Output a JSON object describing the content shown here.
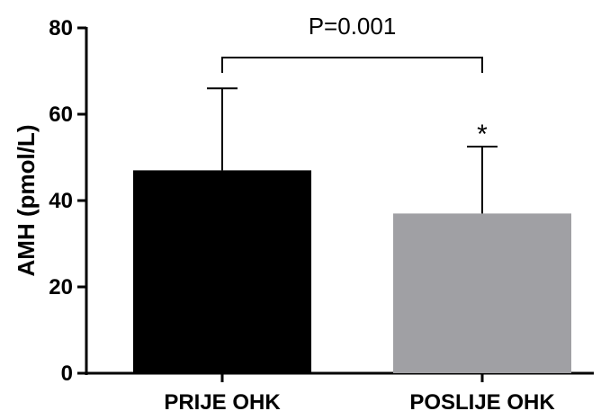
{
  "chart_data": {
    "type": "bar",
    "categories": [
      "PRIJE OHK",
      "POSLIJE OHK"
    ],
    "values": [
      47,
      37
    ],
    "errors": [
      19,
      15.5
    ],
    "colors": [
      "#000000",
      "#a0a0a4"
    ],
    "ylabel": "AMH (pmol/L)",
    "xlabel": "",
    "ylim": [
      0,
      80
    ],
    "yticks": [
      0,
      20,
      40,
      60,
      80
    ],
    "grid": false,
    "significance": {
      "text": "P=0.001"
    },
    "annotations": [
      {
        "category": "POSLIJE OHK",
        "text": "*"
      }
    ]
  }
}
